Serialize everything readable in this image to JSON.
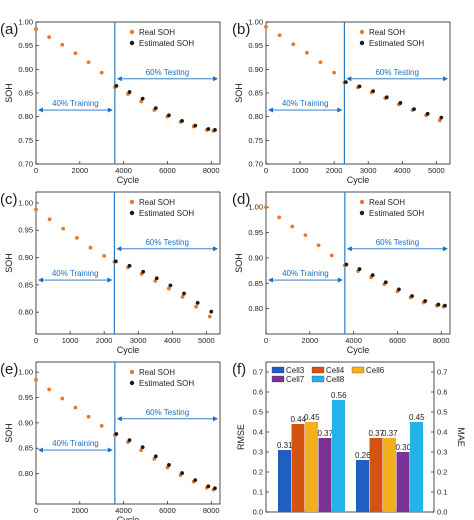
{
  "figure": {
    "panels": [
      "(a)",
      "(b)",
      "(c)",
      "(d)",
      "(e)",
      "(f)"
    ]
  },
  "colors": {
    "real": "#e8782a",
    "estimated": "#1a1a1a",
    "divider": "#1a6fbf",
    "annotation": "#1a6fbf",
    "bars": [
      "#1f5fbf",
      "#d4540f",
      "#f2b01e",
      "#7b3294",
      "#22b4e8"
    ]
  },
  "chart_data": [
    {
      "panel": "(a)",
      "type": "scatter",
      "xlabel": "Cycle",
      "ylabel": "SOH",
      "xlim": [
        0,
        8400
      ],
      "ylim": [
        0.7,
        1.0
      ],
      "xticks": [
        0,
        2000,
        4000,
        6000,
        8000
      ],
      "xtick_labels": [
        "0",
        "2000",
        "4000",
        "6000",
        "8000"
      ],
      "yticks": [
        0.7,
        0.75,
        0.8,
        0.85,
        0.9,
        0.95,
        1.0
      ],
      "ytick_labels": [
        "0.70",
        "0.75",
        "0.80",
        "0.85",
        "0.90",
        "0.95",
        "1.00"
      ],
      "legend": [
        "Real SOH",
        "Estimated SOH"
      ],
      "legend_position": "top-right",
      "split_x": 3600,
      "training_label": "40% Training",
      "testing_label": "60% Testing",
      "real": {
        "x": [
          0,
          600,
          1200,
          1800,
          2400,
          3000,
          3600,
          4200,
          4800,
          5400,
          6000,
          6600,
          7200,
          7800,
          8100
        ],
        "y": [
          0.985,
          0.968,
          0.952,
          0.934,
          0.915,
          0.893,
          0.862,
          0.848,
          0.832,
          0.814,
          0.8,
          0.789,
          0.779,
          0.772,
          0.77
        ]
      },
      "estimated": {
        "x": [
          3600,
          4200,
          4800,
          5400,
          6000,
          6600,
          7200,
          7800,
          8100
        ],
        "y": [
          0.865,
          0.852,
          0.838,
          0.818,
          0.803,
          0.791,
          0.781,
          0.774,
          0.772
        ]
      }
    },
    {
      "panel": "(b)",
      "type": "scatter",
      "xlabel": "Cycle",
      "ylabel": "SOH",
      "xlim": [
        0,
        5400
      ],
      "ylim": [
        0.7,
        1.0
      ],
      "xticks": [
        0,
        1000,
        2000,
        3000,
        4000,
        5000
      ],
      "xtick_labels": [
        "0",
        "1000",
        "2000",
        "3000",
        "4000",
        "5000"
      ],
      "yticks": [
        0.7,
        0.75,
        0.8,
        0.85,
        0.9,
        0.95,
        1.0
      ],
      "ytick_labels": [
        "0.70",
        "0.75",
        "0.80",
        "0.85",
        "0.90",
        "0.95",
        "1.00"
      ],
      "legend": [
        "Real SOH",
        "Estimated SOH"
      ],
      "legend_position": "top-right",
      "split_x": 2300,
      "training_label": "40% Training",
      "testing_label": "60% Testing",
      "real": {
        "x": [
          0,
          400,
          800,
          1200,
          1600,
          2000,
          2300,
          2700,
          3100,
          3500,
          3900,
          4300,
          4700,
          5100
        ],
        "y": [
          0.99,
          0.972,
          0.953,
          0.935,
          0.915,
          0.893,
          0.872,
          0.862,
          0.851,
          0.839,
          0.826,
          0.814,
          0.803,
          0.792
        ]
      },
      "estimated": {
        "x": [
          2300,
          2700,
          3100,
          3500,
          3900,
          4300,
          4700,
          5100
        ],
        "y": [
          0.873,
          0.864,
          0.854,
          0.841,
          0.829,
          0.816,
          0.806,
          0.798
        ]
      }
    },
    {
      "panel": "(c)",
      "type": "scatter",
      "xlabel": "Cycle",
      "ylabel": "SOH",
      "xlim": [
        0,
        5400
      ],
      "ylim": [
        0.76,
        1.02
      ],
      "xticks": [
        0,
        1000,
        2000,
        3000,
        4000,
        5000
      ],
      "xtick_labels": [
        "0",
        "1000",
        "2000",
        "3000",
        "4000",
        "5000"
      ],
      "yticks": [
        0.8,
        0.85,
        0.9,
        0.95,
        1.0
      ],
      "ytick_labels": [
        "0.80",
        "0.85",
        "0.90",
        "0.95",
        "1.00"
      ],
      "legend": [
        "Real SOH",
        "Estimated SOH"
      ],
      "legend_position": "top-right",
      "split_x": 2300,
      "training_label": "40% Training",
      "testing_label": "60% Testing",
      "real": {
        "x": [
          0,
          400,
          800,
          1200,
          1600,
          2000,
          2300,
          2700,
          3100,
          3500,
          3900,
          4300,
          4700,
          5100
        ],
        "y": [
          0.988,
          0.97,
          0.953,
          0.936,
          0.918,
          0.903,
          0.892,
          0.882,
          0.87,
          0.857,
          0.843,
          0.828,
          0.81,
          0.792
        ]
      },
      "estimated": {
        "x": [
          2300,
          2700,
          3100,
          3500,
          3900,
          4300,
          4700,
          5100
        ],
        "y": [
          0.893,
          0.885,
          0.874,
          0.862,
          0.849,
          0.834,
          0.817,
          0.801
        ]
      }
    },
    {
      "panel": "(d)",
      "type": "scatter",
      "xlabel": "Cycle",
      "ylabel": "SOH",
      "xlim": [
        0,
        8400
      ],
      "ylim": [
        0.75,
        1.03
      ],
      "xticks": [
        0,
        2000,
        4000,
        6000,
        8000
      ],
      "xtick_labels": [
        "0",
        "2000",
        "4000",
        "6000",
        "8000"
      ],
      "yticks": [
        0.8,
        0.85,
        0.9,
        0.95,
        1.0
      ],
      "ytick_labels": [
        "0.80",
        "0.85",
        "0.90",
        "0.95",
        "1.00"
      ],
      "legend": [
        "Real SOH",
        "Estimated SOH"
      ],
      "legend_position": "top-right",
      "split_x": 3600,
      "training_label": "40% Training",
      "testing_label": "60% Testing",
      "real": {
        "x": [
          0,
          600,
          1200,
          1800,
          2400,
          3000,
          3600,
          4200,
          4800,
          5400,
          6000,
          6600,
          7200,
          7800,
          8100
        ],
        "y": [
          1.0,
          0.98,
          0.962,
          0.945,
          0.925,
          0.905,
          0.885,
          0.874,
          0.862,
          0.848,
          0.834,
          0.822,
          0.812,
          0.806,
          0.804
        ]
      },
      "estimated": {
        "x": [
          3600,
          4200,
          4800,
          5400,
          6000,
          6600,
          7200,
          7800,
          8100
        ],
        "y": [
          0.887,
          0.878,
          0.866,
          0.852,
          0.838,
          0.825,
          0.815,
          0.808,
          0.806
        ]
      }
    },
    {
      "panel": "(e)",
      "type": "scatter",
      "xlabel": "Cycle",
      "ylabel": "SOH",
      "xlim": [
        0,
        8400
      ],
      "ylim": [
        0.74,
        1.02
      ],
      "xticks": [
        0,
        2000,
        4000,
        6000,
        8000
      ],
      "xtick_labels": [
        "0",
        "2000",
        "4000",
        "6000",
        "8000"
      ],
      "yticks": [
        0.8,
        0.85,
        0.9,
        0.95,
        1.0
      ],
      "ytick_labels": [
        "0.80",
        "0.85",
        "0.90",
        "0.95",
        "1.00"
      ],
      "legend": [
        "Real SOH",
        "Estimated SOH"
      ],
      "legend_position": "top-right",
      "split_x": 3600,
      "training_label": "40% Training",
      "testing_label": "60% Testing",
      "real": {
        "x": [
          0,
          600,
          1200,
          1800,
          2400,
          3000,
          3600,
          4200,
          4800,
          5400,
          6000,
          6600,
          7200,
          7800,
          8100
        ],
        "y": [
          0.985,
          0.966,
          0.948,
          0.93,
          0.912,
          0.894,
          0.876,
          0.862,
          0.846,
          0.829,
          0.812,
          0.797,
          0.784,
          0.772,
          0.768
        ]
      },
      "estimated": {
        "x": [
          3600,
          4200,
          4800,
          5400,
          6000,
          6600,
          7200,
          7800,
          8100
        ],
        "y": [
          0.878,
          0.866,
          0.852,
          0.834,
          0.817,
          0.801,
          0.787,
          0.775,
          0.771
        ]
      }
    },
    {
      "panel": "(f)",
      "type": "bar",
      "categories": [
        "RMSE",
        "MAE"
      ],
      "ylabel": "RMSE",
      "y2label": "MAE",
      "ylim": [
        0,
        0.75
      ],
      "yticks": [
        0.0,
        0.1,
        0.2,
        0.3,
        0.4,
        0.5,
        0.6,
        0.7
      ],
      "ytick_labels": [
        "0.0",
        "0.1",
        "0.2",
        "0.3",
        "0.4",
        "0.5",
        "0.6",
        "0.7"
      ],
      "legend_position": "top-left",
      "series": [
        {
          "name": "Cell3",
          "values": [
            0.31,
            0.26
          ]
        },
        {
          "name": "Cell4",
          "values": [
            0.44,
            0.37
          ]
        },
        {
          "name": "Cell6",
          "values": [
            0.45,
            0.37
          ]
        },
        {
          "name": "Cell7",
          "values": [
            0.37,
            0.3
          ]
        },
        {
          "name": "Cell8",
          "values": [
            0.56,
            0.45
          ]
        }
      ],
      "value_labels": [
        [
          "0.31",
          "0.44",
          "0.45",
          "0.37",
          "0.56"
        ],
        [
          "0.26",
          "0.37",
          "0.37",
          "0.30",
          "0.45"
        ]
      ]
    }
  ]
}
